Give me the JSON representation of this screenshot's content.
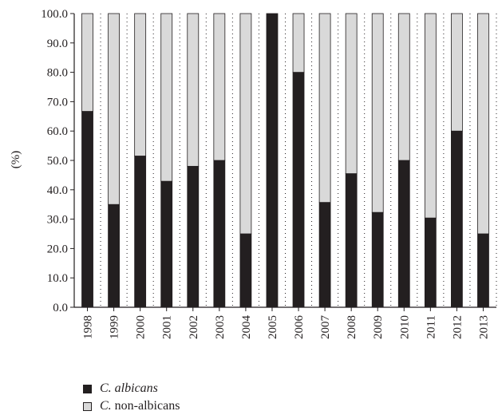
{
  "chart_data": {
    "type": "bar",
    "stacked": true,
    "title": "",
    "xlabel": "",
    "ylabel": "(%)",
    "ylim": [
      0,
      100
    ],
    "yticks": [
      "0.0",
      "10.0",
      "20.0",
      "30.0",
      "40.0",
      "50.0",
      "60.0",
      "70.0",
      "80.0",
      "90.0",
      "100.0"
    ],
    "grid": "dotted vertical",
    "categories": [
      "1998",
      "1999",
      "2000",
      "2001",
      "2002",
      "2003",
      "2004",
      "2005",
      "2006",
      "2007",
      "2008",
      "2009",
      "2010",
      "2011",
      "2012",
      "2013"
    ],
    "series": [
      {
        "name": "C. albicans",
        "name_italic": "C. albicans",
        "name_plain": "",
        "color": "#231f20",
        "values": [
          66.7,
          35.0,
          51.5,
          42.9,
          48.0,
          50.0,
          25.0,
          100.0,
          80.0,
          35.7,
          45.5,
          32.3,
          50.0,
          30.4,
          60.0,
          25.0
        ]
      },
      {
        "name": "C. non-albicans",
        "name_italic": "C.",
        "name_plain": " non-albicans",
        "color": "#d9d9d9",
        "values": [
          33.3,
          65.0,
          48.5,
          57.1,
          52.0,
          50.0,
          75.0,
          0.0,
          20.0,
          64.3,
          54.5,
          67.7,
          50.0,
          69.6,
          40.0,
          75.0
        ]
      }
    ],
    "legend_position": "bottom-left"
  }
}
